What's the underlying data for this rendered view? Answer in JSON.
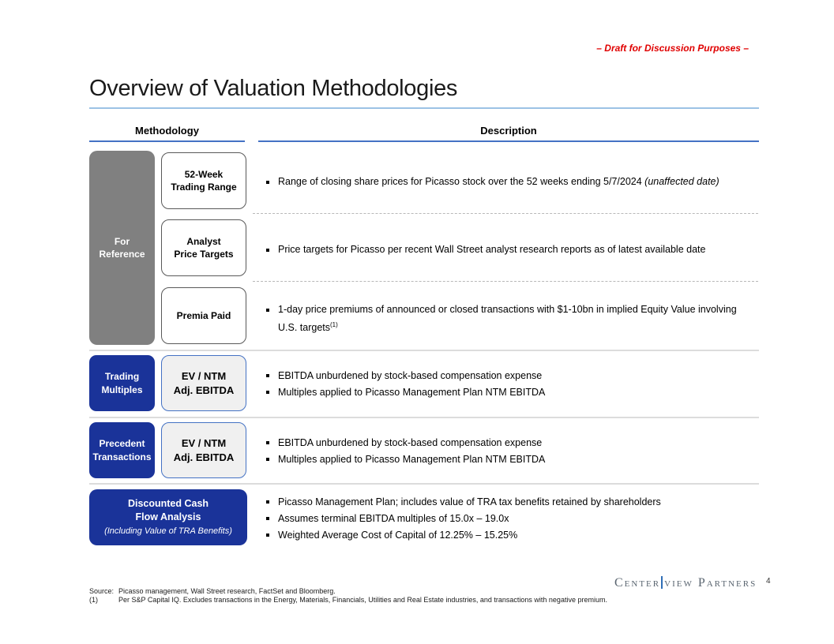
{
  "draft_note": "– Draft for Discussion Purposes –",
  "title": "Overview of Valuation Methodologies",
  "columns": {
    "methodology": "Methodology",
    "description": "Description"
  },
  "for_reference": {
    "line1": "For",
    "line2": "Reference"
  },
  "rows": {
    "trading_range": {
      "method_line1": "52-Week",
      "method_line2": "Trading Range",
      "bullet_text": "Range of closing share prices for Picasso stock over the 52 weeks ending 5/7/2024 ",
      "bullet_italic": "(unaffected date)"
    },
    "analyst_targets": {
      "method_line1": "Analyst",
      "method_line2": "Price Targets",
      "bullet_text": "Price targets for Picasso per recent Wall Street analyst research reports as of latest available date"
    },
    "premia_paid": {
      "method": "Premia Paid",
      "bullet_text": "1-day price premiums of announced or closed transactions with $1-10bn in implied Equity Value involving U.S. targets",
      "bullet_sup": "(1)"
    },
    "trading_multiples": {
      "method_line1": "Trading",
      "method_line2": "Multiples",
      "metric_line1": "EV / NTM",
      "metric_line2": "Adj. EBITDA",
      "bullets": [
        "EBITDA unburdened by stock-based compensation expense",
        "Multiples applied to Picasso Management Plan NTM EBITDA"
      ]
    },
    "precedent_transactions": {
      "method_line1": "Precedent",
      "method_line2": "Transactions",
      "metric_line1": "EV / NTM",
      "metric_line2": "Adj. EBITDA",
      "bullets": [
        "EBITDA unburdened by stock-based compensation expense",
        "Multiples applied to Picasso Management Plan NTM EBITDA"
      ]
    },
    "dcf": {
      "method_line1": "Discounted Cash",
      "method_line2": "Flow Analysis",
      "method_line3": "(Including Value of TRA Benefits)",
      "bullets": [
        "Picasso Management Plan; includes value of TRA tax benefits retained by shareholders",
        "Assumes terminal EBITDA multiples of 15.0x – 19.0x",
        "Weighted Average Cost of Capital of 12.25% – 15.25%"
      ]
    }
  },
  "footer": {
    "source_label": "Source:",
    "source_text": "Picasso management, Wall Street research, FactSet and Bloomberg.",
    "footnote_label": "(1)",
    "footnote_text": "Per S&P Capital IQ. Excludes transactions in the Energy, Materials, Financials, Utilities and Real Estate industries, and transactions with negative premium.",
    "page_number": "4",
    "logo_part1": "Center",
    "logo_part2": "view",
    "logo_part3": "Partners"
  },
  "colors": {
    "accent_blue": "#1a3399",
    "header_underline_blue": "#4472c4",
    "title_underline_blue": "#9cc2e5",
    "draft_red": "#e00000",
    "reference_gray": "#808080"
  }
}
